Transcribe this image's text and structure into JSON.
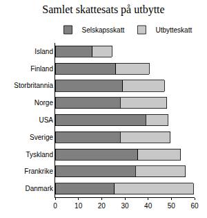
{
  "chart_data": {
    "type": "bar",
    "title": "Samlet skattesats på utbytte",
    "orientation": "horizontal",
    "stacked": true,
    "grid": false,
    "legend": "top",
    "categories": [
      "Island",
      "Finland",
      "Storbritannia",
      "Norge",
      "USA",
      "Sverige",
      "Tyskland",
      "Frankrike",
      "Danmark"
    ],
    "series": [
      {
        "name": "Selskapsskatt",
        "color": "#808080",
        "values": [
          16,
          26,
          29,
          28,
          39,
          28,
          35.5,
          34.5,
          25.5
        ]
      },
      {
        "name": "Utbytteskatt",
        "color": "#c8c8c8",
        "values": [
          8.5,
          14.5,
          18,
          20,
          9.5,
          21.5,
          18.5,
          21.5,
          34
        ]
      }
    ],
    "xlim": [
      0,
      60
    ],
    "xticks": [
      0,
      10,
      20,
      30,
      40,
      50,
      60
    ]
  }
}
